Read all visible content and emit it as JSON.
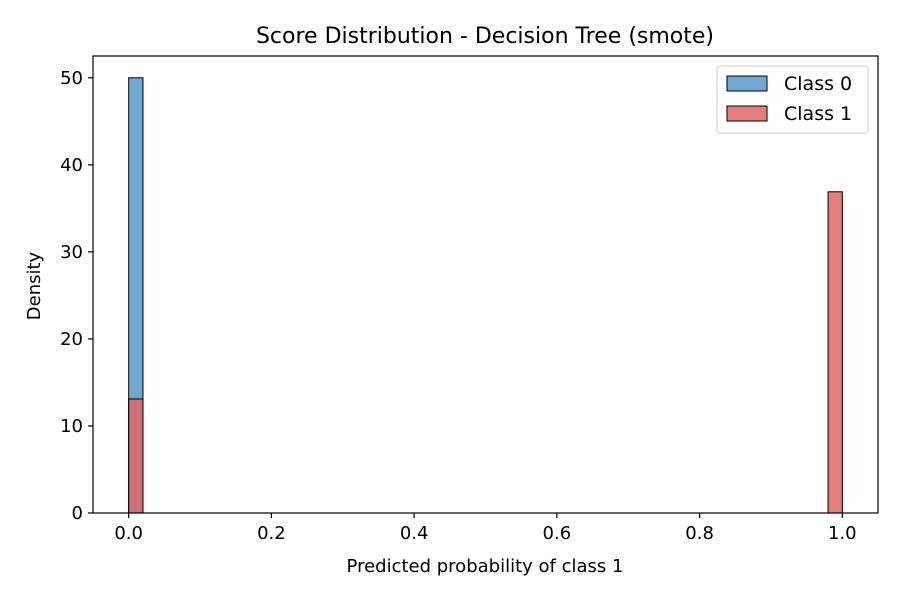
{
  "chart_data": {
    "type": "bar",
    "title": "Score Distribution - Decision Tree (smote)",
    "xlabel": "Predicted probability of class 1",
    "ylabel": "Density",
    "xlim": [
      -0.05,
      1.05
    ],
    "ylim": [
      0,
      52.5
    ],
    "xticks": [
      0.0,
      0.2,
      0.4,
      0.6,
      0.8,
      1.0
    ],
    "xtick_labels": [
      "0.0",
      "0.2",
      "0.4",
      "0.6",
      "0.8",
      "1.0"
    ],
    "yticks": [
      0,
      10,
      20,
      30,
      40,
      50
    ],
    "ytick_labels": [
      "0",
      "10",
      "20",
      "30",
      "40",
      "50"
    ],
    "grid": false,
    "legend_position": "top-right",
    "series": [
      {
        "name": "Class 0",
        "color": "#6fa8d1",
        "alpha": 1.0,
        "bars": [
          {
            "x0": 0.0,
            "x1": 0.02,
            "density": 50.0
          }
        ]
      },
      {
        "name": "Class 1",
        "color": "#e06666",
        "alpha": 0.85,
        "bars": [
          {
            "x0": 0.0,
            "x1": 0.02,
            "density": 13.1
          },
          {
            "x0": 0.98,
            "x1": 1.0,
            "density": 36.9
          }
        ]
      }
    ]
  }
}
